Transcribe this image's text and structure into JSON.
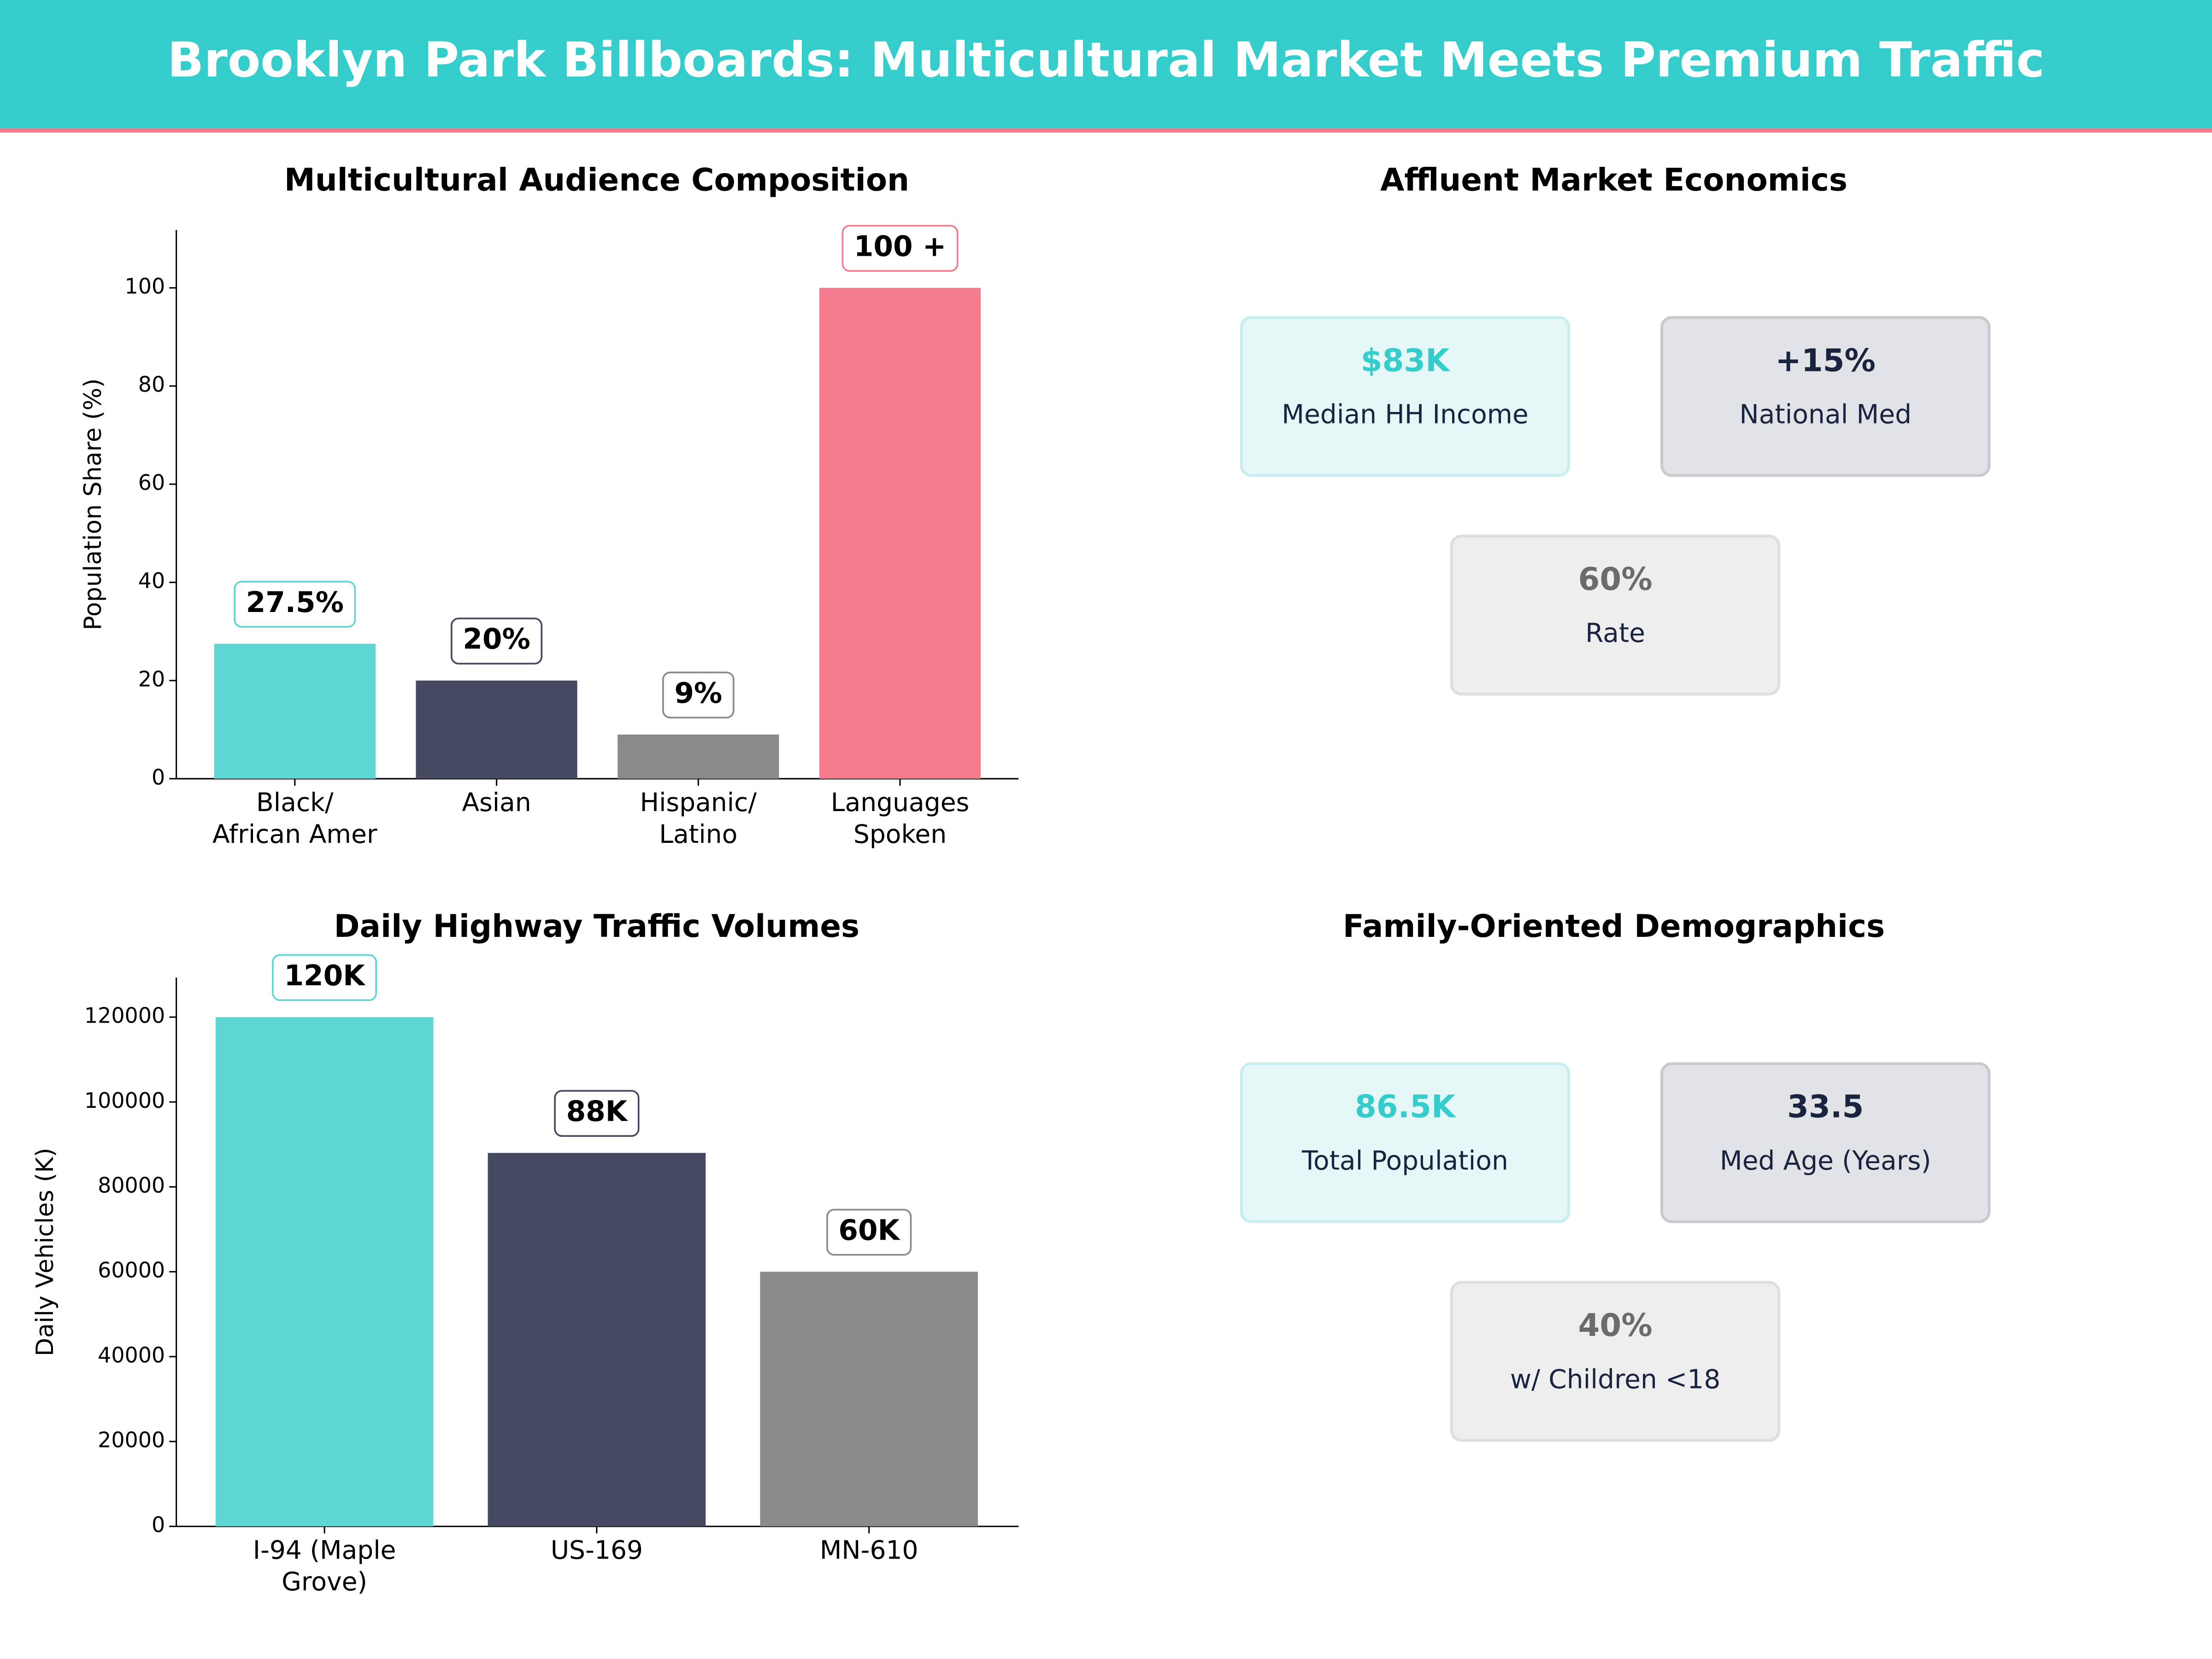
{
  "header": {
    "title": "Brooklyn Park Billboards: Multicultural Market Meets Premium Traffic"
  },
  "chart_data": [
    {
      "type": "bar",
      "title": "Multicultural Audience Composition",
      "y_label": "Population Share (%)",
      "categories": [
        "Black/\nAfrican Amer",
        "Asian",
        "Hispanic/\nLatino",
        "Languages\nSpoken"
      ],
      "values": [
        27.5,
        20,
        9,
        100
      ],
      "value_labels": [
        "27.5%",
        "20%",
        "9%",
        "100 +"
      ],
      "colors": [
        "#5dd6d4",
        "#464a60",
        "#8a8a8a",
        "#f57c8f"
      ],
      "ylim": [
        0,
        111.8
      ],
      "yticks": [
        0,
        20,
        40,
        60,
        80,
        100
      ]
    },
    {
      "type": "bar",
      "title": "Daily Highway Traffic Volumes",
      "y_label": "Daily Vehicles (K)",
      "categories": [
        "I-94 (Maple\nGrove)",
        "US-169",
        "MN-610"
      ],
      "values": [
        120000,
        88000,
        60000
      ],
      "value_labels": [
        "120K",
        "88K",
        "60K"
      ],
      "colors": [
        "#5dd6d4",
        "#464a60",
        "#8a8a8a"
      ],
      "ylim": [
        0,
        129300
      ],
      "yticks": [
        0,
        20000,
        40000,
        60000,
        80000,
        100000,
        120000
      ]
    }
  ],
  "panels": [
    {
      "title": "Affluent Market Economics",
      "cards": [
        {
          "value": "$83K",
          "label": "Median HH Income"
        },
        {
          "value": "+15%",
          "label": "National Med"
        },
        {
          "value": "60%",
          "label": "Rate"
        }
      ]
    },
    {
      "title": "Family-Oriented Demographics",
      "cards": [
        {
          "value": "86.5K",
          "label": "Total Population"
        },
        {
          "value": "33.5",
          "label": "Med Age (Years)"
        },
        {
          "value": "40%",
          "label": "w/ Children <18"
        }
      ]
    }
  ]
}
